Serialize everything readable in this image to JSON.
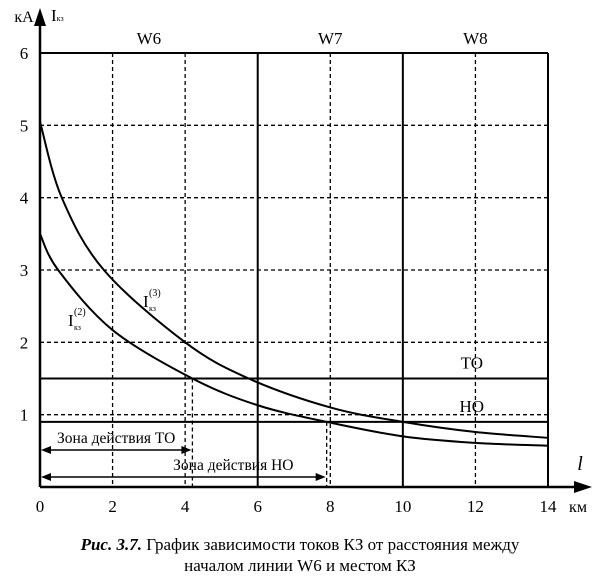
{
  "chart_data": {
    "type": "line",
    "title": "",
    "xlabel": "l",
    "x_unit": "км",
    "ylabel": "Iкз",
    "y_unit": "кА",
    "xlim": [
      0,
      14
    ],
    "ylim": [
      0,
      6
    ],
    "x_ticks": [
      "0",
      "2",
      "4",
      "6",
      "8",
      "10",
      "12",
      "14"
    ],
    "y_ticks": [
      "1",
      "2",
      "3",
      "4",
      "5",
      "6"
    ],
    "grid": true,
    "sections": [
      {
        "label": "W6",
        "from": 0,
        "to": 6
      },
      {
        "label": "W7",
        "from": 6,
        "to": 10
      },
      {
        "label": "W8",
        "from": 10,
        "to": 14
      }
    ],
    "series": [
      {
        "name": "I(3)кз",
        "label_main": "I",
        "label_sub": "кз",
        "label_sup": "(3)",
        "x": [
          0,
          0.6,
          1.76,
          4,
          5.75,
          8,
          10,
          12,
          14
        ],
        "y": [
          5.05,
          4,
          3,
          2,
          1.5,
          1.1,
          0.9,
          0.76,
          0.68
        ]
      },
      {
        "name": "I(2)кз",
        "label_main": "I",
        "label_sub": "кз",
        "label_sup": "(2)",
        "x": [
          0,
          0.5,
          2,
          4.2,
          6,
          7.9,
          10,
          12,
          14
        ],
        "y": [
          3.5,
          3,
          2.17,
          1.5,
          1.13,
          0.9,
          0.7,
          0.61,
          0.57
        ]
      }
    ],
    "thresholds": [
      {
        "name": "ТО",
        "value": 1.5
      },
      {
        "name": "НО",
        "value": 0.9
      }
    ],
    "zones": [
      {
        "label": "Зона действия ТО",
        "from": 0,
        "to": 4.2
      },
      {
        "label": "Зона действия НО",
        "from": 0,
        "to": 7.9
      }
    ]
  },
  "caption": {
    "prefix": "Рис. 3.7.",
    "line1": " График зависимости токов КЗ от расстояния между",
    "line2": "началом линии W6 и местом КЗ"
  }
}
